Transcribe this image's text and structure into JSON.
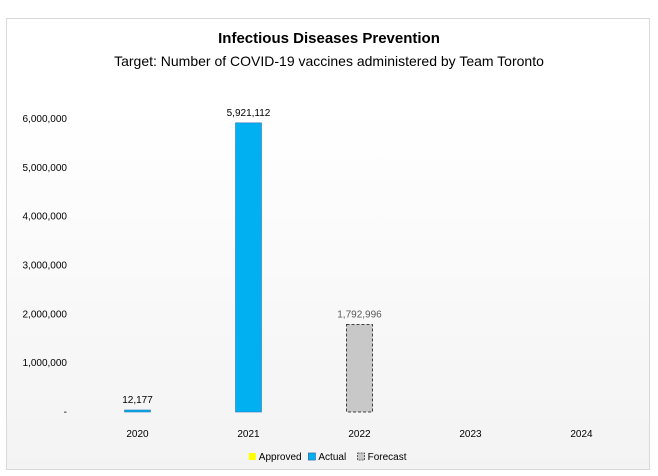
{
  "chart_data": {
    "type": "bar",
    "title": "Infectious Diseases Prevention",
    "subtitle": "Target:  Number of COVID-19 vaccines administered by Team Toronto",
    "categories": [
      "2020",
      "2021",
      "2022",
      "2023",
      "2024"
    ],
    "y_ticks": [
      "-",
      "1,000,000",
      "2,000,000",
      "3,000,000",
      "4,000,000",
      "5,000,000",
      "6,000,000"
    ],
    "ylim": [
      0,
      6000000
    ],
    "series": [
      {
        "name": "Approved",
        "color": "#ffff00",
        "values": [
          null,
          null,
          null,
          null,
          null
        ],
        "labels": [
          null,
          null,
          null,
          null,
          null
        ]
      },
      {
        "name": "Actual",
        "color": "#00b0f0",
        "values": [
          12177,
          5921112,
          null,
          null,
          null
        ],
        "labels": [
          "12,177",
          "5,921,112",
          null,
          null,
          null
        ]
      },
      {
        "name": "Forecast",
        "color": "#c8c8c8",
        "values": [
          null,
          null,
          1792996,
          null,
          null
        ],
        "labels": [
          null,
          null,
          "1,792,996",
          null,
          null
        ]
      }
    ],
    "legend_position": "bottom",
    "grid": false
  }
}
